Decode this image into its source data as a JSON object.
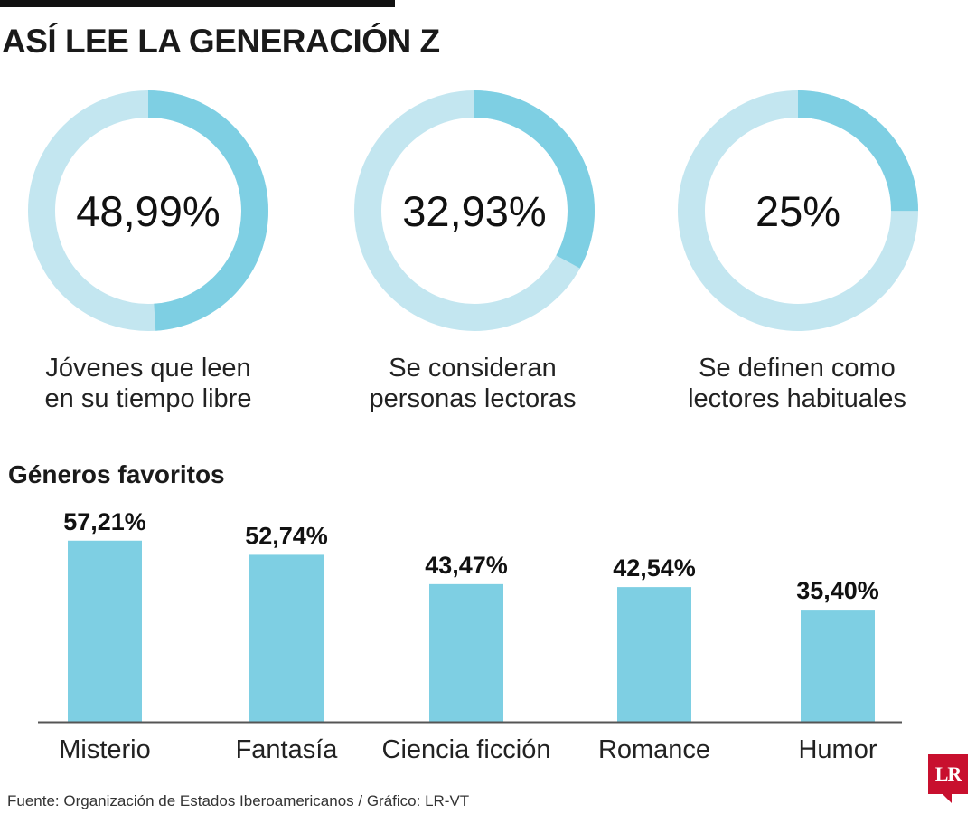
{
  "title": "ASÍ LEE LA GENERACIÓN Z",
  "colors": {
    "accent": "#7ecfe3",
    "track": "#c3e6f0",
    "axis": "#555555",
    "logo": "#c8102e"
  },
  "donuts": [
    {
      "value": 48.99,
      "label": "48,99%",
      "caption_line1": "Jóvenes que leen",
      "caption_line2": "en su tiempo libre"
    },
    {
      "value": 32.93,
      "label": "32,93%",
      "caption_line1": "Se consideran",
      "caption_line2": "personas lectoras"
    },
    {
      "value": 25,
      "label": "25%",
      "caption_line1": "Se definen como",
      "caption_line2": "lectores habituales"
    }
  ],
  "chart_data": {
    "type": "bar",
    "title": "Géneros favoritos",
    "categories": [
      "Misterio",
      "Fantasía",
      "Ciencia ficción",
      "Romance",
      "Humor"
    ],
    "values": [
      57.21,
      52.74,
      43.47,
      42.54,
      35.4
    ],
    "value_labels": [
      "57,21%",
      "52,74%",
      "43,47%",
      "42,54%",
      "35,40%"
    ],
    "unit": "%",
    "ylim": [
      0,
      60
    ],
    "grid": false,
    "legend": "none"
  },
  "footer": {
    "source": "Fuente: Organización de Estados Iberoamericanos / Gráfico: LR-VT",
    "logo_text": "LR"
  }
}
